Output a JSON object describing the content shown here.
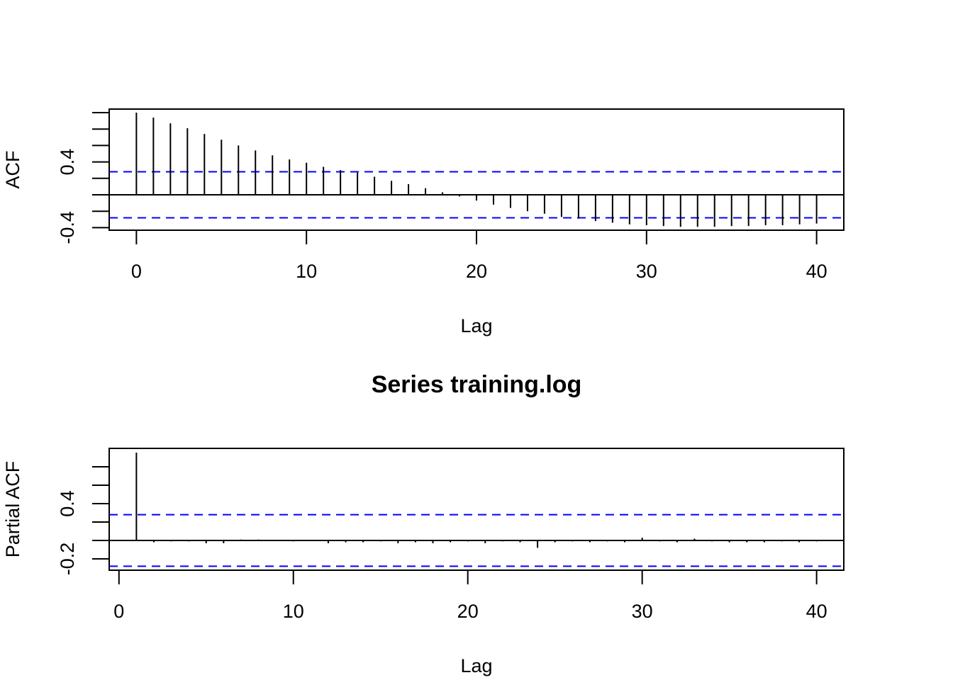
{
  "chart_data": [
    {
      "type": "stem",
      "ylabel": "ACF",
      "xlabel": "Lag",
      "x": [
        0,
        1,
        2,
        3,
        4,
        5,
        6,
        7,
        8,
        9,
        10,
        11,
        12,
        13,
        14,
        15,
        16,
        17,
        18,
        19,
        20,
        21,
        22,
        23,
        24,
        25,
        26,
        27,
        28,
        29,
        30,
        31,
        32,
        33,
        34,
        35,
        36,
        37,
        38,
        39,
        40
      ],
      "values": [
        1.0,
        0.94,
        0.87,
        0.81,
        0.74,
        0.67,
        0.6,
        0.54,
        0.48,
        0.43,
        0.39,
        0.34,
        0.3,
        0.27,
        0.22,
        0.17,
        0.13,
        0.08,
        0.03,
        -0.02,
        -0.07,
        -0.12,
        -0.16,
        -0.2,
        -0.23,
        -0.27,
        -0.29,
        -0.32,
        -0.34,
        -0.36,
        -0.37,
        -0.38,
        -0.39,
        -0.39,
        -0.39,
        -0.38,
        -0.38,
        -0.37,
        -0.37,
        -0.36,
        -0.35
      ],
      "color": "#000000",
      "xlim": [
        -1.6,
        41.6
      ],
      "ylim": [
        -0.431,
        1.043
      ],
      "xticks": [
        0,
        10,
        20,
        30,
        40
      ],
      "yticks": [
        -0.4,
        0.4
      ],
      "yticks_unlabeled": [
        -0.2,
        0,
        0.2,
        0.6,
        0.8,
        1
      ],
      "ci": [
        -0.28,
        0.28
      ],
      "ci_color": "#0000ff"
    },
    {
      "type": "stem",
      "title": "Series  training.log",
      "ylabel": "Partial ACF",
      "xlabel": "Lag",
      "x": [
        1,
        2,
        3,
        4,
        5,
        6,
        7,
        8,
        9,
        10,
        11,
        12,
        13,
        14,
        15,
        16,
        17,
        18,
        19,
        20,
        21,
        22,
        23,
        24,
        25,
        26,
        27,
        28,
        29,
        30,
        31,
        32,
        33,
        34,
        35,
        36,
        37,
        38,
        39,
        40
      ],
      "values": [
        0.954,
        -0.02,
        -0.01,
        -0.01,
        -0.03,
        -0.03,
        0.01,
        0.01,
        0.005,
        -0.01,
        -0.005,
        -0.03,
        -0.02,
        -0.02,
        -0.01,
        -0.03,
        -0.02,
        -0.03,
        -0.02,
        -0.01,
        -0.03,
        -0.01,
        -0.02,
        -0.08,
        -0.02,
        -0.01,
        -0.02,
        -0.01,
        -0.02,
        0.03,
        -0.01,
        -0.02,
        0.02,
        -0.01,
        -0.02,
        -0.02,
        -0.02,
        -0.01,
        -0.02,
        -0.01
      ],
      "color": "#000000",
      "xlim": [
        -0.56,
        41.56
      ],
      "ylim": [
        -0.323,
        1.0
      ],
      "xticks": [
        0,
        10,
        20,
        30,
        40
      ],
      "yticks": [
        -0.2,
        0.4
      ],
      "yticks_unlabeled": [
        0,
        0.2,
        0.6,
        0.8
      ],
      "ci": [
        -0.28,
        0.28
      ],
      "ci_color": "#0000ff"
    }
  ]
}
